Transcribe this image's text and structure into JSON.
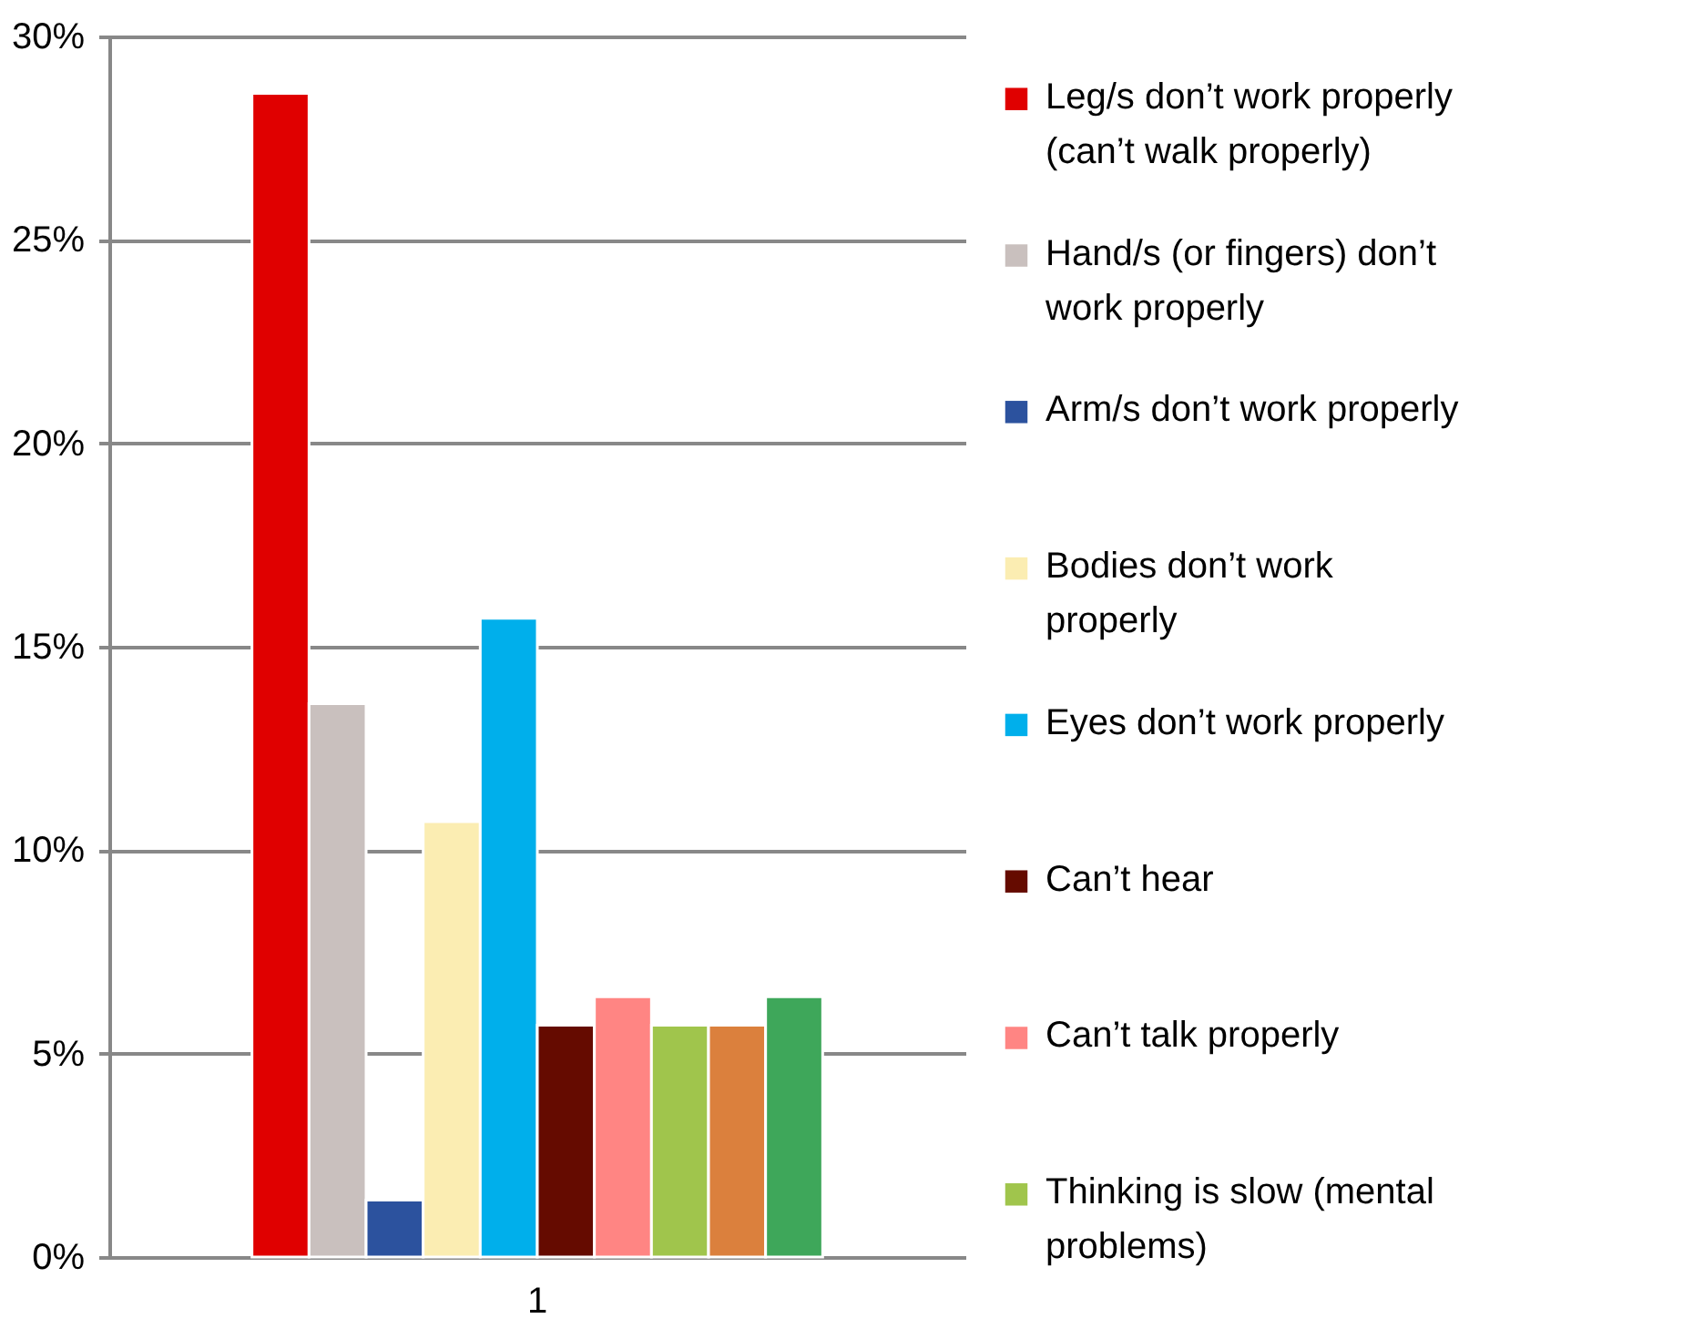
{
  "chart_data": {
    "type": "bar",
    "categories": [
      "1"
    ],
    "series": [
      {
        "name": "Leg/s don’t work properly (can’t walk properly)",
        "color": "#e00000",
        "values": [
          28.6
        ]
      },
      {
        "name": "Hand/s (or fingers) don’t work properly",
        "color": "#c9c0be",
        "values": [
          13.6
        ]
      },
      {
        "name": "Arm/s don’t work properly",
        "color": "#2c529e",
        "values": [
          1.4
        ]
      },
      {
        "name": "Bodies don’t work properly",
        "color": "#fbedb2",
        "values": [
          10.7
        ]
      },
      {
        "name": "Eyes don’t work properly",
        "color": "#00afeb",
        "values": [
          15.7
        ]
      },
      {
        "name": "Can’t hear",
        "color": "#650b00",
        "values": [
          5.7
        ]
      },
      {
        "name": "Can’t talk properly",
        "color": "#ff8583",
        "values": [
          6.4
        ]
      },
      {
        "name": "Thinking is slow (mental problems)",
        "color": "#a0c54c",
        "values": [
          5.7
        ]
      },
      {
        "color": "#db803d",
        "values": [
          5.7
        ]
      },
      {
        "color": "#3ea75a",
        "values": [
          6.4
        ]
      }
    ],
    "ylim": [
      0,
      30
    ],
    "yticks": [
      {
        "value": 0,
        "label": "0%"
      },
      {
        "value": 5,
        "label": "5%"
      },
      {
        "value": 10,
        "label": "10%"
      },
      {
        "value": 15,
        "label": "15%"
      },
      {
        "value": 20,
        "label": "20%"
      },
      {
        "value": 25,
        "label": "25%"
      },
      {
        "value": 30,
        "label": "30%"
      }
    ],
    "grid": "y",
    "legend": "right"
  }
}
